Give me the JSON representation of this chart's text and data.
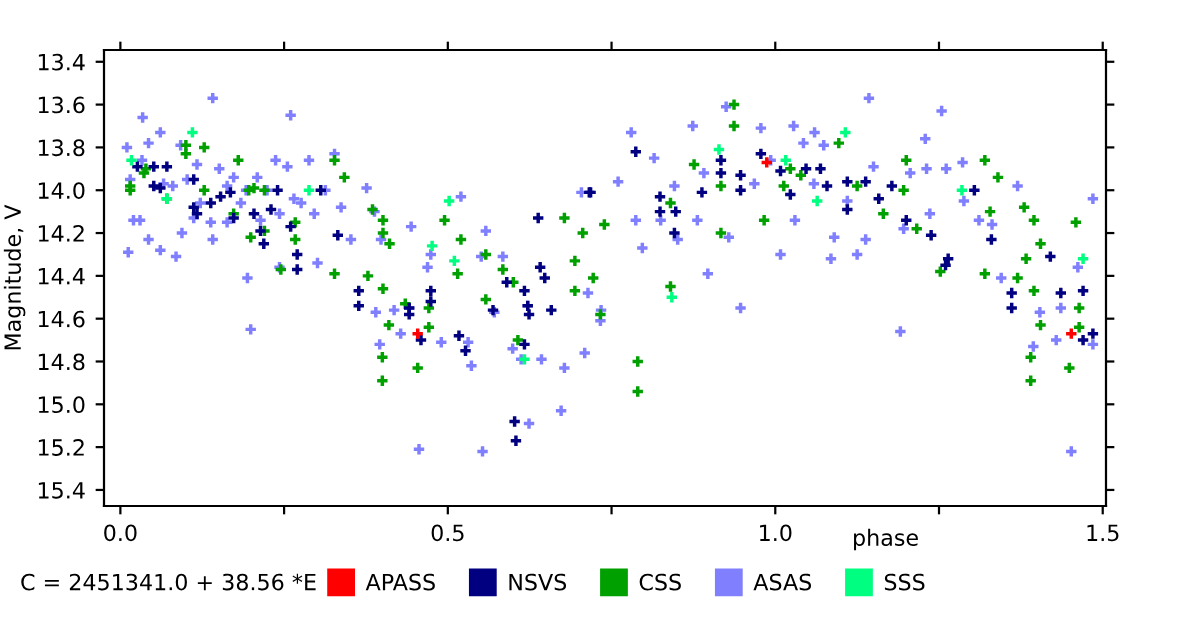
{
  "chart_data": {
    "type": "scatter",
    "xlabel": "phase",
    "ylabel": "Magnitude, V",
    "annotations": [
      "C = 2451341.0 + 38.56 *E"
    ],
    "xlim": [
      -0.025,
      1.505
    ],
    "ylim": [
      15.475,
      13.345
    ],
    "xticks": [
      {
        "value": 0,
        "label": "0.0"
      },
      {
        "value": 0.25,
        "label": null
      },
      0.5,
      {
        "value": 0.75,
        "label": null
      },
      {
        "value": 1,
        "label": "1.0"
      },
      {
        "value": 1.25,
        "label": null
      },
      1.5
    ],
    "yticks": [
      13.4,
      13.6,
      13.8,
      {
        "value": 14,
        "label": "14.0"
      },
      14.2,
      14.4,
      14.6,
      14.8,
      {
        "value": 15,
        "label": "15.0"
      },
      15.2,
      15.4
    ],
    "legend": "bottom",
    "grid": false,
    "marker": "cross",
    "series": [
      {
        "name": "ASAS",
        "color": "#8080ff",
        "x": [
          0.01,
          0.012,
          0.015,
          0.02,
          0.03,
          0.033,
          0.034,
          0.043,
          0.043,
          0.061,
          0.066,
          0.061,
          0.08,
          0.085,
          0.092,
          0.102,
          0.094,
          0.117,
          0.122,
          0.112,
          0.138,
          0.141,
          0.151,
          0.163,
          0.163,
          0.173,
          0.184,
          0.192,
          0.194,
          0.199,
          0.209,
          0.214,
          0.224,
          0.237,
          0.243,
          0.243,
          0.255,
          0.265,
          0.276,
          0.288,
          0.296,
          0.301,
          0.313,
          0.327,
          0.337,
          0.352,
          0.376,
          0.388,
          0.39,
          0.398,
          0.396,
          0.418,
          0.428,
          0.441,
          0.444,
          0.469,
          0.474,
          0.49,
          0.52,
          0.531,
          0.536,
          0.558,
          0.551,
          0.571,
          0.584,
          0.599,
          0.612,
          0.622,
          0.643,
          0.678,
          0.704,
          0.709,
          0.714,
          0.733,
          0.734,
          0.76,
          0.78,
          0.787,
          0.797,
          0.815,
          0.825,
          0.846,
          0.851,
          0.874,
          0.881,
          0.891,
          0.897,
          0.925,
          0.929,
          0.947,
          0.968,
          0.978,
          0.993,
          1.008,
          1.028,
          1.03,
          1.043,
          1.06,
          1.059,
          1.074,
          1.09,
          1.085,
          1.11,
          1.125,
          1.138,
          1.15,
          1.191,
          1.196,
          1.206,
          1.229,
          1.231,
          1.236,
          1.261,
          1.286,
          1.288,
          1.311,
          1.331,
          1.345,
          1.37,
          1.394,
          1.404,
          1.429,
          1.436,
          1.462,
          1.485,
          1.485,
          0.141,
          0.26,
          0.456,
          0.553,
          0.624,
          0.673,
          1.143,
          1.254,
          1.452
        ],
        "values": [
          13.8,
          14.29,
          13.95,
          14.14,
          14.14,
          13.86,
          13.66,
          13.78,
          14.23,
          13.73,
          13.97,
          14.28,
          13.98,
          14.31,
          13.79,
          13.95,
          14.2,
          13.88,
          14.06,
          14.13,
          14.15,
          14.23,
          13.9,
          13.98,
          14.15,
          13.94,
          14.06,
          14.0,
          14.41,
          14.65,
          13.94,
          14.14,
          14.0,
          13.86,
          14.11,
          14.36,
          13.89,
          14.04,
          14.06,
          13.86,
          14.11,
          14.34,
          14.0,
          13.83,
          14.08,
          14.23,
          13.99,
          14.1,
          14.57,
          14.23,
          14.72,
          14.56,
          14.67,
          14.55,
          14.17,
          14.36,
          14.3,
          14.71,
          14.03,
          14.71,
          14.82,
          14.19,
          14.31,
          14.57,
          14.31,
          14.74,
          14.79,
          14.54,
          14.79,
          14.83,
          14.01,
          14.76,
          14.48,
          14.61,
          14.56,
          13.96,
          13.73,
          14.14,
          14.27,
          13.85,
          14.14,
          13.98,
          14.23,
          13.7,
          14.14,
          13.92,
          14.39,
          13.61,
          14.22,
          14.55,
          13.97,
          13.71,
          13.86,
          14.3,
          13.7,
          14.14,
          13.78,
          13.73,
          13.97,
          13.79,
          14.22,
          14.32,
          14.05,
          14.3,
          14.23,
          13.89,
          14.66,
          14.18,
          13.92,
          13.76,
          13.9,
          14.11,
          13.9,
          13.87,
          14.05,
          14.14,
          14.16,
          14.41,
          13.98,
          14.73,
          14.57,
          14.7,
          14.55,
          14.36,
          14.04,
          14.72,
          13.57,
          13.65,
          15.21,
          15.22,
          15.09,
          15.03,
          13.57,
          13.63,
          15.22
        ]
      },
      {
        "name": "CSS",
        "color": "#00a000",
        "x": [
          0.015,
          0.015,
          0.036,
          0.039,
          0.071,
          0.1,
          0.1,
          0.128,
          0.128,
          0.18,
          0.173,
          0.196,
          0.204,
          0.199,
          0.22,
          0.22,
          0.245,
          0.267,
          0.267,
          0.327,
          0.327,
          0.342,
          0.385,
          0.378,
          0.401,
          0.401,
          0.411,
          0.401,
          0.41,
          0.4,
          0.4,
          0.435,
          0.454,
          0.471,
          0.471,
          0.495,
          0.52,
          0.515,
          0.558,
          0.558,
          0.584,
          0.6,
          0.607,
          0.678,
          0.694,
          0.694,
          0.706,
          0.722,
          0.733,
          0.739,
          0.79,
          0.79,
          0.84,
          0.84,
          0.876,
          0.917,
          0.917,
          0.937,
          0.937,
          0.983,
          1.013,
          1.023,
          1.039,
          1.097,
          1.125,
          1.165,
          1.196,
          1.2,
          1.216,
          1.252,
          1.32,
          1.328,
          1.34,
          1.32,
          1.37,
          1.38,
          1.395,
          1.405,
          1.395,
          1.383,
          1.405,
          1.39,
          1.39,
          1.449,
          1.459,
          1.464,
          1.464
        ],
        "values": [
          13.98,
          14.0,
          13.92,
          13.9,
          14.04,
          13.79,
          13.83,
          13.8,
          14.0,
          13.86,
          14.11,
          14.0,
          13.99,
          14.22,
          14.19,
          14.0,
          14.37,
          14.15,
          14.23,
          13.86,
          14.39,
          13.94,
          14.09,
          14.4,
          14.14,
          14.2,
          14.25,
          14.46,
          14.63,
          14.78,
          14.89,
          14.53,
          14.83,
          14.55,
          14.64,
          14.14,
          14.23,
          14.39,
          14.51,
          14.3,
          14.37,
          14.43,
          14.7,
          14.13,
          14.33,
          14.47,
          14.2,
          14.41,
          14.58,
          14.16,
          14.8,
          14.94,
          14.06,
          14.45,
          13.88,
          13.98,
          14.2,
          13.7,
          13.6,
          14.14,
          13.98,
          13.9,
          13.93,
          13.78,
          13.98,
          14.11,
          14.0,
          13.86,
          14.18,
          14.38,
          13.86,
          14.1,
          13.94,
          14.39,
          14.41,
          14.08,
          14.14,
          14.25,
          14.47,
          14.32,
          14.63,
          14.78,
          14.89,
          14.83,
          14.15,
          14.55,
          14.64
        ]
      },
      {
        "name": "NSVS",
        "color": "#000080",
        "x": [
          0.026,
          0.051,
          0.051,
          0.071,
          0.061,
          0.112,
          0.112,
          0.117,
          0.138,
          0.153,
          0.168,
          0.173,
          0.204,
          0.214,
          0.219,
          0.23,
          0.24,
          0.26,
          0.27,
          0.27,
          0.306,
          0.332,
          0.364,
          0.364,
          0.441,
          0.441,
          0.474,
          0.474,
          0.459,
          0.517,
          0.527,
          0.569,
          0.59,
          0.602,
          0.604,
          0.617,
          0.622,
          0.624,
          0.617,
          0.641,
          0.648,
          0.658,
          0.718,
          0.638,
          0.716,
          0.787,
          0.824,
          0.824,
          0.846,
          0.848,
          0.888,
          0.917,
          0.917,
          0.947,
          0.947,
          0.978,
          1.008,
          1.023,
          1.047,
          1.069,
          1.079,
          1.11,
          1.11,
          1.138,
          1.158,
          1.178,
          1.2,
          1.238,
          1.264,
          1.26,
          1.304,
          1.33,
          1.361,
          1.361,
          1.42,
          1.436,
          1.47,
          1.47,
          1.485
        ],
        "values": [
          13.89,
          13.89,
          13.98,
          13.89,
          13.99,
          13.95,
          14.08,
          14.11,
          14.06,
          14.03,
          14.01,
          14.13,
          14.11,
          14.19,
          14.25,
          14.09,
          14.0,
          14.17,
          14.3,
          14.37,
          14.0,
          14.21,
          14.47,
          14.54,
          14.55,
          14.58,
          14.47,
          14.52,
          14.7,
          14.68,
          14.75,
          14.56,
          14.43,
          15.08,
          15.17,
          14.72,
          14.54,
          14.58,
          14.47,
          14.36,
          14.41,
          14.56,
          14.01,
          14.13,
          14.01,
          13.82,
          14.03,
          14.1,
          14.2,
          14.1,
          14.01,
          13.86,
          13.92,
          14.0,
          13.93,
          13.83,
          13.91,
          14.02,
          13.9,
          13.9,
          13.98,
          13.96,
          14.09,
          13.96,
          14.04,
          13.98,
          14.14,
          14.21,
          14.32,
          14.35,
          14.0,
          14.23,
          14.48,
          14.55,
          14.31,
          14.48,
          14.47,
          14.7,
          14.67
        ]
      },
      {
        "name": "SSS",
        "color": "#00ff80",
        "x": [
          0.017,
          0.071,
          0.11,
          0.288,
          0.502,
          0.51,
          0.476,
          0.617,
          0.842,
          0.914,
          1.016,
          1.064,
          1.107,
          1.285,
          1.47
        ],
        "values": [
          13.86,
          14.04,
          13.73,
          14.0,
          14.05,
          14.33,
          14.26,
          14.79,
          14.5,
          13.81,
          13.86,
          14.05,
          13.73,
          14.0,
          14.32
        ]
      },
      {
        "name": "APASS",
        "color": "#ff0000",
        "x": [
          0.454,
          0.987,
          1.452
        ],
        "values": [
          14.67,
          13.87,
          14.67
        ]
      }
    ]
  }
}
